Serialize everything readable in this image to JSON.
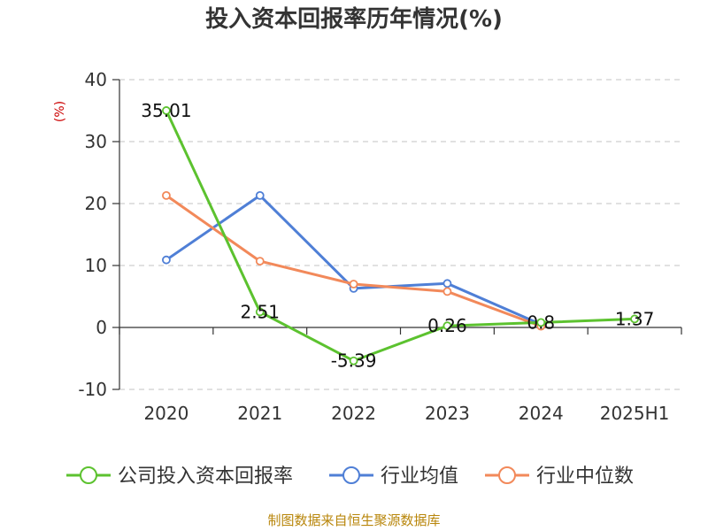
{
  "chart_data": {
    "type": "line",
    "title": "投入资本回报率历年情况(%)",
    "ylabel": "(%)",
    "categories": [
      "2020",
      "2021",
      "2022",
      "2023",
      "2024",
      "2025H1"
    ],
    "ylim": [
      -10,
      40
    ],
    "yticks": [
      "40",
      "30",
      "20",
      "10",
      "0",
      "-10"
    ],
    "grid": true,
    "legend_position": "bottom",
    "series": [
      {
        "name": "公司投入资本回报率",
        "color": "#5cc22f",
        "values": [
          35.01,
          2.51,
          -5.39,
          0.26,
          0.8,
          1.37
        ],
        "labels": [
          "35.01",
          "2.51",
          "-5.39",
          "0.26",
          "0.8",
          "1.37"
        ]
      },
      {
        "name": "行业均值",
        "color": "#4f7fd6",
        "values": [
          10.9,
          21.3,
          6.3,
          7.1,
          0.5,
          null
        ]
      },
      {
        "name": "行业中位数",
        "color": "#f2895a",
        "values": [
          21.3,
          10.7,
          7.0,
          5.8,
          0.2,
          null
        ]
      }
    ],
    "source": "制图数据来自恒生聚源数据库"
  }
}
